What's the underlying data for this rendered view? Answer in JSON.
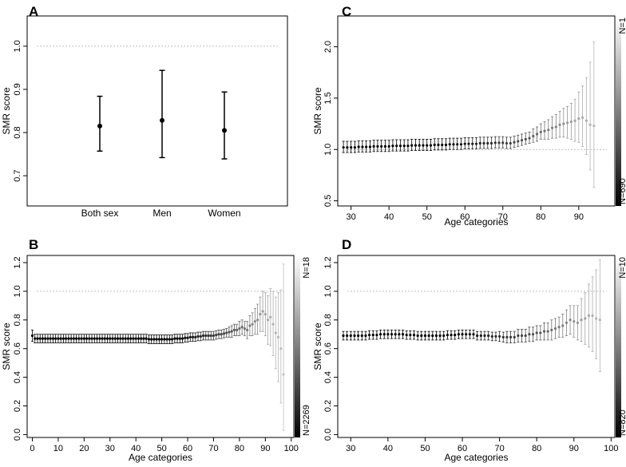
{
  "chart_data": [
    {
      "panel": "A",
      "type": "scatter",
      "title": "A",
      "xlabel": "",
      "ylabel": "SMR score",
      "categories": [
        "Both sex",
        "Men",
        "Women"
      ],
      "values": [
        0.815,
        0.828,
        0.805
      ],
      "lower": [
        0.757,
        0.742,
        0.739
      ],
      "upper": [
        0.884,
        0.944,
        0.894
      ],
      "reference_line": 1.0,
      "ylim": [
        0.63,
        1.07
      ],
      "yticks": [
        "0.7",
        "0.8",
        "0.9",
        "1.0"
      ]
    },
    {
      "panel": "B",
      "type": "scatter",
      "title": "B",
      "xlabel": "Age categories",
      "ylabel": "SMR score",
      "xlim": [
        -2,
        101
      ],
      "xticks": [
        "0",
        "10",
        "20",
        "30",
        "40",
        "50",
        "60",
        "70",
        "80",
        "90",
        "100"
      ],
      "ylim": [
        -0.02,
        1.25
      ],
      "yticks": [
        "0.0",
        "0.2",
        "0.4",
        "0.6",
        "0.8",
        "1.0",
        "1.2"
      ],
      "reference_line": 1.0,
      "colorbar": {
        "top_label": "N=18",
        "bottom_label": "N=2269"
      },
      "series_description": "SMR by age with 95% CI; point shade from black (large N) to light grey (small N)",
      "x": [
        0,
        1,
        2,
        3,
        4,
        5,
        6,
        7,
        8,
        9,
        10,
        11,
        12,
        13,
        14,
        15,
        16,
        17,
        18,
        19,
        20,
        21,
        22,
        23,
        24,
        25,
        26,
        27,
        28,
        29,
        30,
        31,
        32,
        33,
        34,
        35,
        36,
        37,
        38,
        39,
        40,
        41,
        42,
        43,
        44,
        45,
        46,
        47,
        48,
        49,
        50,
        51,
        52,
        53,
        54,
        55,
        56,
        57,
        58,
        59,
        60,
        61,
        62,
        63,
        64,
        65,
        66,
        67,
        68,
        69,
        70,
        71,
        72,
        73,
        74,
        75,
        76,
        77,
        78,
        79,
        80,
        81,
        82,
        83,
        84,
        85,
        86,
        87,
        88,
        89,
        90,
        91,
        92,
        93,
        94,
        95,
        96,
        97
      ],
      "y": [
        0.69,
        0.67,
        0.67,
        0.67,
        0.67,
        0.67,
        0.67,
        0.67,
        0.67,
        0.67,
        0.67,
        0.67,
        0.67,
        0.67,
        0.67,
        0.67,
        0.67,
        0.67,
        0.67,
        0.67,
        0.67,
        0.67,
        0.67,
        0.67,
        0.67,
        0.67,
        0.67,
        0.67,
        0.67,
        0.67,
        0.67,
        0.67,
        0.67,
        0.67,
        0.67,
        0.67,
        0.67,
        0.67,
        0.67,
        0.67,
        0.67,
        0.67,
        0.67,
        0.67,
        0.67,
        0.665,
        0.665,
        0.665,
        0.665,
        0.665,
        0.665,
        0.665,
        0.665,
        0.665,
        0.665,
        0.67,
        0.67,
        0.67,
        0.67,
        0.675,
        0.675,
        0.68,
        0.68,
        0.68,
        0.685,
        0.685,
        0.69,
        0.69,
        0.69,
        0.69,
        0.69,
        0.695,
        0.7,
        0.7,
        0.705,
        0.71,
        0.715,
        0.72,
        0.73,
        0.73,
        0.74,
        0.75,
        0.74,
        0.73,
        0.76,
        0.77,
        0.79,
        0.8,
        0.84,
        0.86,
        0.84,
        0.8,
        0.82,
        0.77,
        0.71,
        0.68,
        0.6,
        0.42
      ],
      "lower": [
        0.65,
        0.64,
        0.64,
        0.64,
        0.64,
        0.64,
        0.64,
        0.64,
        0.64,
        0.64,
        0.64,
        0.64,
        0.64,
        0.64,
        0.64,
        0.64,
        0.64,
        0.64,
        0.64,
        0.64,
        0.64,
        0.64,
        0.64,
        0.64,
        0.64,
        0.64,
        0.64,
        0.64,
        0.64,
        0.64,
        0.64,
        0.64,
        0.64,
        0.64,
        0.64,
        0.64,
        0.64,
        0.64,
        0.64,
        0.64,
        0.64,
        0.64,
        0.64,
        0.64,
        0.64,
        0.635,
        0.635,
        0.635,
        0.635,
        0.635,
        0.635,
        0.635,
        0.635,
        0.635,
        0.635,
        0.64,
        0.64,
        0.64,
        0.64,
        0.645,
        0.645,
        0.65,
        0.65,
        0.65,
        0.655,
        0.655,
        0.66,
        0.66,
        0.66,
        0.66,
        0.66,
        0.665,
        0.67,
        0.67,
        0.675,
        0.68,
        0.68,
        0.68,
        0.69,
        0.69,
        0.69,
        0.7,
        0.69,
        0.67,
        0.69,
        0.69,
        0.7,
        0.7,
        0.72,
        0.72,
        0.69,
        0.63,
        0.62,
        0.55,
        0.46,
        0.37,
        0.22,
        0.03
      ],
      "upper": [
        0.73,
        0.7,
        0.7,
        0.7,
        0.7,
        0.7,
        0.7,
        0.7,
        0.7,
        0.7,
        0.7,
        0.7,
        0.7,
        0.7,
        0.7,
        0.7,
        0.7,
        0.7,
        0.7,
        0.7,
        0.7,
        0.7,
        0.7,
        0.7,
        0.7,
        0.7,
        0.7,
        0.7,
        0.7,
        0.7,
        0.7,
        0.7,
        0.7,
        0.7,
        0.7,
        0.7,
        0.7,
        0.7,
        0.7,
        0.7,
        0.7,
        0.7,
        0.7,
        0.7,
        0.7,
        0.695,
        0.695,
        0.695,
        0.695,
        0.695,
        0.695,
        0.695,
        0.695,
        0.695,
        0.695,
        0.7,
        0.7,
        0.7,
        0.7,
        0.705,
        0.705,
        0.71,
        0.71,
        0.71,
        0.715,
        0.715,
        0.72,
        0.72,
        0.72,
        0.72,
        0.72,
        0.725,
        0.73,
        0.73,
        0.735,
        0.74,
        0.75,
        0.76,
        0.77,
        0.77,
        0.79,
        0.8,
        0.79,
        0.79,
        0.83,
        0.85,
        0.88,
        0.91,
        0.96,
        1.0,
        0.99,
        0.97,
        1.02,
        1.0,
        0.96,
        0.99,
        1.01,
        1.19
      ],
      "nshade": [
        0.0,
        0.0,
        0.0,
        0.0,
        0.0,
        0.0,
        0.0,
        0.0,
        0.0,
        0.0,
        0.0,
        0.0,
        0.0,
        0.0,
        0.0,
        0.0,
        0.0,
        0.0,
        0.0,
        0.0,
        0.0,
        0.0,
        0.0,
        0.0,
        0.0,
        0.0,
        0.0,
        0.0,
        0.0,
        0.0,
        0.0,
        0.0,
        0.0,
        0.0,
        0.0,
        0.0,
        0.0,
        0.0,
        0.0,
        0.0,
        0.0,
        0.0,
        0.0,
        0.0,
        0.0,
        0.0,
        0.0,
        0.0,
        0.0,
        0.0,
        0.0,
        0.0,
        0.0,
        0.0,
        0.0,
        0.0,
        0.0,
        0.02,
        0.04,
        0.06,
        0.08,
        0.1,
        0.12,
        0.14,
        0.16,
        0.18,
        0.2,
        0.22,
        0.24,
        0.26,
        0.28,
        0.3,
        0.32,
        0.34,
        0.36,
        0.38,
        0.4,
        0.42,
        0.45,
        0.48,
        0.51,
        0.54,
        0.57,
        0.6,
        0.63,
        0.66,
        0.69,
        0.72,
        0.75,
        0.78,
        0.81,
        0.84,
        0.86,
        0.88,
        0.9,
        0.92,
        0.94,
        0.96
      ]
    },
    {
      "panel": "C",
      "type": "scatter",
      "title": "C",
      "xlabel": "Age categories",
      "ylabel": "SMR score",
      "xlim": [
        26.5,
        99.5
      ],
      "xticks": [
        "30",
        "40",
        "50",
        "60",
        "70",
        "80",
        "90"
      ],
      "ylim": [
        0.45,
        2.3
      ],
      "yticks": [
        "0.5",
        "1.0",
        "1.5",
        "2.0"
      ],
      "reference_line": 1.0,
      "colorbar": {
        "top_label": "N=1",
        "bottom_label": "N=690"
      },
      "x": [
        28,
        29,
        30,
        31,
        32,
        33,
        34,
        35,
        36,
        37,
        38,
        39,
        40,
        41,
        42,
        43,
        44,
        45,
        46,
        47,
        48,
        49,
        50,
        51,
        52,
        53,
        54,
        55,
        56,
        57,
        58,
        59,
        60,
        61,
        62,
        63,
        64,
        65,
        66,
        67,
        68,
        69,
        70,
        71,
        72,
        73,
        74,
        75,
        76,
        77,
        78,
        79,
        80,
        81,
        82,
        83,
        84,
        85,
        86,
        87,
        88,
        89,
        90,
        91,
        92,
        93,
        94
      ],
      "y": [
        1.02,
        1.02,
        1.02,
        1.02,
        1.025,
        1.025,
        1.025,
        1.025,
        1.03,
        1.03,
        1.03,
        1.03,
        1.03,
        1.035,
        1.035,
        1.035,
        1.035,
        1.035,
        1.04,
        1.04,
        1.04,
        1.04,
        1.04,
        1.04,
        1.045,
        1.045,
        1.045,
        1.045,
        1.05,
        1.05,
        1.05,
        1.05,
        1.055,
        1.055,
        1.055,
        1.055,
        1.06,
        1.06,
        1.06,
        1.06,
        1.065,
        1.065,
        1.065,
        1.06,
        1.06,
        1.07,
        1.08,
        1.09,
        1.1,
        1.11,
        1.13,
        1.15,
        1.17,
        1.18,
        1.19,
        1.21,
        1.22,
        1.24,
        1.25,
        1.26,
        1.27,
        1.28,
        1.3,
        1.31,
        1.28,
        1.24,
        1.23
      ],
      "lower": [
        0.97,
        0.97,
        0.97,
        0.97,
        0.975,
        0.975,
        0.975,
        0.975,
        0.98,
        0.98,
        0.98,
        0.98,
        0.98,
        0.985,
        0.985,
        0.985,
        0.985,
        0.985,
        0.99,
        0.99,
        0.99,
        0.99,
        0.99,
        0.99,
        0.995,
        0.995,
        0.995,
        0.995,
        1.0,
        1.0,
        1.0,
        1.0,
        1.005,
        1.005,
        1.005,
        1.005,
        1.01,
        1.01,
        1.01,
        1.01,
        1.015,
        1.015,
        1.015,
        1.01,
        1.01,
        1.02,
        1.03,
        1.04,
        1.05,
        1.06,
        1.07,
        1.08,
        1.1,
        1.1,
        1.1,
        1.11,
        1.11,
        1.12,
        1.12,
        1.11,
        1.1,
        1.08,
        1.07,
        1.03,
        0.95,
        0.8,
        0.63
      ],
      "upper": [
        1.08,
        1.08,
        1.08,
        1.08,
        1.085,
        1.085,
        1.085,
        1.085,
        1.09,
        1.09,
        1.09,
        1.09,
        1.09,
        1.095,
        1.095,
        1.095,
        1.095,
        1.095,
        1.1,
        1.1,
        1.1,
        1.1,
        1.1,
        1.1,
        1.105,
        1.105,
        1.105,
        1.105,
        1.11,
        1.11,
        1.11,
        1.11,
        1.115,
        1.115,
        1.115,
        1.115,
        1.12,
        1.12,
        1.12,
        1.12,
        1.125,
        1.125,
        1.125,
        1.12,
        1.12,
        1.13,
        1.14,
        1.15,
        1.16,
        1.17,
        1.2,
        1.22,
        1.25,
        1.27,
        1.29,
        1.32,
        1.34,
        1.37,
        1.4,
        1.42,
        1.45,
        1.49,
        1.56,
        1.62,
        1.7,
        1.85,
        2.05
      ],
      "nshade": [
        0.0,
        0.0,
        0.0,
        0.0,
        0.0,
        0.0,
        0.0,
        0.0,
        0.0,
        0.0,
        0.0,
        0.0,
        0.0,
        0.0,
        0.0,
        0.0,
        0.0,
        0.0,
        0.0,
        0.0,
        0.0,
        0.0,
        0.0,
        0.0,
        0.0,
        0.0,
        0.0,
        0.0,
        0.02,
        0.04,
        0.06,
        0.08,
        0.1,
        0.12,
        0.14,
        0.16,
        0.18,
        0.2,
        0.22,
        0.24,
        0.26,
        0.28,
        0.3,
        0.32,
        0.34,
        0.36,
        0.38,
        0.4,
        0.42,
        0.45,
        0.48,
        0.51,
        0.54,
        0.57,
        0.6,
        0.63,
        0.66,
        0.69,
        0.72,
        0.75,
        0.78,
        0.81,
        0.84,
        0.86,
        0.88,
        0.9,
        0.92
      ]
    },
    {
      "panel": "D",
      "type": "scatter",
      "title": "D",
      "xlabel": "Age categories",
      "ylabel": "SMR score",
      "xlim": [
        26.5,
        101
      ],
      "xticks": [
        "30",
        "40",
        "50",
        "60",
        "70",
        "80",
        "90",
        "100"
      ],
      "ylim": [
        -0.02,
        1.25
      ],
      "yticks": [
        "0.0",
        "0.2",
        "0.4",
        "0.6",
        "0.8",
        "1.0",
        "1.2"
      ],
      "reference_line": 1.0,
      "colorbar": {
        "top_label": "N=10",
        "bottom_label": "N=820"
      },
      "x": [
        28,
        29,
        30,
        31,
        32,
        33,
        34,
        35,
        36,
        37,
        38,
        39,
        40,
        41,
        42,
        43,
        44,
        45,
        46,
        47,
        48,
        49,
        50,
        51,
        52,
        53,
        54,
        55,
        56,
        57,
        58,
        59,
        60,
        61,
        62,
        63,
        64,
        65,
        66,
        67,
        68,
        69,
        70,
        71,
        72,
        73,
        74,
        75,
        76,
        77,
        78,
        79,
        80,
        81,
        82,
        83,
        84,
        85,
        86,
        87,
        88,
        89,
        90,
        91,
        92,
        93,
        94,
        95,
        96,
        97
      ],
      "y": [
        0.69,
        0.69,
        0.69,
        0.69,
        0.69,
        0.69,
        0.69,
        0.695,
        0.695,
        0.695,
        0.7,
        0.7,
        0.7,
        0.7,
        0.7,
        0.7,
        0.7,
        0.695,
        0.695,
        0.695,
        0.69,
        0.69,
        0.69,
        0.69,
        0.69,
        0.69,
        0.69,
        0.69,
        0.695,
        0.695,
        0.695,
        0.7,
        0.7,
        0.7,
        0.7,
        0.7,
        0.69,
        0.69,
        0.69,
        0.69,
        0.685,
        0.685,
        0.685,
        0.68,
        0.68,
        0.68,
        0.68,
        0.69,
        0.69,
        0.69,
        0.7,
        0.7,
        0.71,
        0.71,
        0.72,
        0.72,
        0.73,
        0.74,
        0.75,
        0.76,
        0.78,
        0.8,
        0.79,
        0.78,
        0.8,
        0.81,
        0.83,
        0.83,
        0.81,
        0.8
      ],
      "lower": [
        0.66,
        0.66,
        0.66,
        0.66,
        0.66,
        0.66,
        0.66,
        0.665,
        0.665,
        0.665,
        0.67,
        0.67,
        0.67,
        0.67,
        0.67,
        0.67,
        0.67,
        0.665,
        0.665,
        0.665,
        0.66,
        0.66,
        0.66,
        0.66,
        0.66,
        0.66,
        0.66,
        0.66,
        0.665,
        0.665,
        0.665,
        0.67,
        0.67,
        0.67,
        0.67,
        0.67,
        0.66,
        0.66,
        0.66,
        0.66,
        0.655,
        0.655,
        0.65,
        0.645,
        0.64,
        0.64,
        0.64,
        0.645,
        0.645,
        0.645,
        0.65,
        0.65,
        0.66,
        0.66,
        0.66,
        0.66,
        0.66,
        0.67,
        0.68,
        0.68,
        0.69,
        0.7,
        0.68,
        0.66,
        0.65,
        0.63,
        0.61,
        0.58,
        0.53,
        0.44
      ],
      "upper": [
        0.72,
        0.72,
        0.72,
        0.72,
        0.72,
        0.72,
        0.72,
        0.725,
        0.725,
        0.725,
        0.73,
        0.73,
        0.73,
        0.73,
        0.73,
        0.73,
        0.73,
        0.725,
        0.725,
        0.725,
        0.72,
        0.72,
        0.72,
        0.72,
        0.72,
        0.72,
        0.72,
        0.72,
        0.725,
        0.725,
        0.725,
        0.73,
        0.73,
        0.73,
        0.73,
        0.73,
        0.72,
        0.72,
        0.72,
        0.72,
        0.715,
        0.715,
        0.72,
        0.715,
        0.72,
        0.72,
        0.72,
        0.735,
        0.735,
        0.735,
        0.75,
        0.75,
        0.76,
        0.76,
        0.78,
        0.78,
        0.8,
        0.81,
        0.82,
        0.84,
        0.87,
        0.9,
        0.9,
        0.9,
        0.95,
        0.99,
        1.05,
        1.1,
        1.15,
        1.22
      ],
      "nshade": [
        0.0,
        0.0,
        0.0,
        0.0,
        0.0,
        0.0,
        0.0,
        0.0,
        0.0,
        0.0,
        0.0,
        0.0,
        0.0,
        0.0,
        0.0,
        0.0,
        0.0,
        0.0,
        0.0,
        0.0,
        0.0,
        0.0,
        0.0,
        0.0,
        0.0,
        0.0,
        0.0,
        0.0,
        0.0,
        0.0,
        0.0,
        0.0,
        0.02,
        0.04,
        0.06,
        0.08,
        0.1,
        0.12,
        0.14,
        0.16,
        0.18,
        0.2,
        0.22,
        0.24,
        0.26,
        0.28,
        0.3,
        0.32,
        0.34,
        0.36,
        0.38,
        0.4,
        0.42,
        0.45,
        0.48,
        0.51,
        0.54,
        0.57,
        0.6,
        0.63,
        0.66,
        0.69,
        0.72,
        0.75,
        0.78,
        0.81,
        0.84,
        0.86,
        0.88,
        0.9
      ]
    }
  ]
}
